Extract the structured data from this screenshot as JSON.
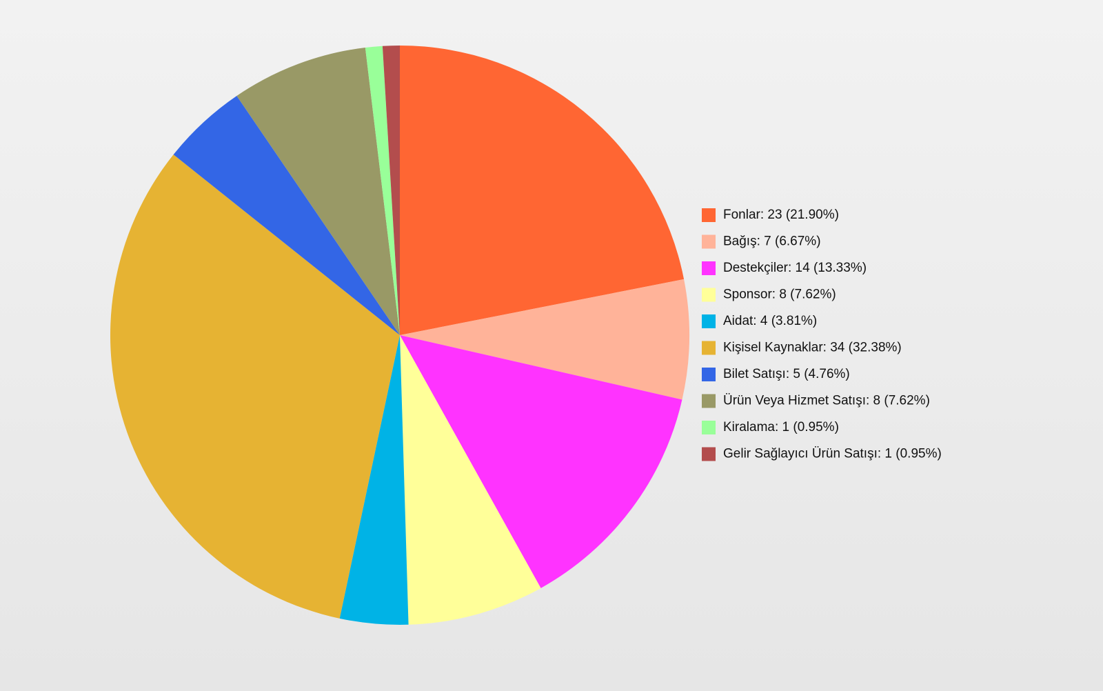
{
  "chart_data": {
    "type": "pie",
    "categories": [
      "Fonlar: 23 (21.90%)",
      "Bağış: 7 (6.67%)",
      "Destekçiler: 14 (13.33%)",
      "Sponsor: 8 (7.62%)",
      "Aidat: 4 (3.81%)",
      "Kişisel Kaynaklar: 34 (32.38%)",
      "Bilet Satışı: 5 (4.76%)",
      "Ürün Veya Hizmet Satışı: 8 (7.62%)",
      "Kiralama: 1 (0.95%)",
      "Gelir Sağlayıcı Ürün Satışı: 1 (0.95%)"
    ],
    "values": [
      23,
      7,
      14,
      8,
      4,
      34,
      5,
      8,
      1,
      1
    ],
    "colors": [
      "#ff6633",
      "#ffb399",
      "#ff33ff",
      "#ffff99",
      "#00b3e6",
      "#e6b333",
      "#3366e6",
      "#999966",
      "#99ff99",
      "#b34d4d"
    ],
    "legend": "right"
  }
}
